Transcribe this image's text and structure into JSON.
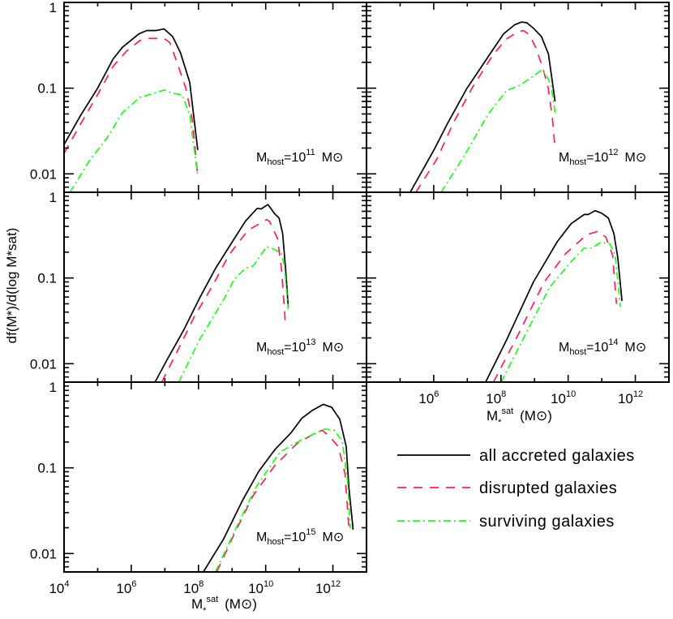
{
  "figure": {
    "xlabel": {
      "symbol": "M",
      "superscript": "sat",
      "subscript": "*",
      "unit": "(M⊙)"
    },
    "ylabel": "df(M*)/d(log M*sat)",
    "x_tick_base": "10",
    "x_tick_exponents": [
      "4",
      "6",
      "8",
      "10",
      "12"
    ],
    "y_tick_labels": [
      "1",
      "0.1",
      "0.01"
    ],
    "legend": [
      {
        "label": "all accreted galaxies",
        "color": "#000000",
        "style": "solid"
      },
      {
        "label": "disrupted galaxies",
        "color": "#ff1f55",
        "style": "dashed"
      },
      {
        "label": "surviving galaxies",
        "color": "#19ff19",
        "style": "dash-dot"
      }
    ]
  },
  "chart_data": [
    {
      "type": "line",
      "xscale": "log",
      "yscale": "log",
      "xlim": [
        10000.0,
        10000000000000.0
      ],
      "ylim": [
        0.0061,
        1.0
      ],
      "annotation": {
        "symbol": "M",
        "subscript": "host",
        "base": "=10",
        "exponent": "11",
        "unit": "M⊙"
      },
      "series": [
        {
          "name": "all accreted galaxies",
          "x": [
            10000.0,
            32000.0,
            100000.0,
            290000.0,
            550000.0,
            1700000.0,
            2900000.0,
            5500000.0,
            9500000.0,
            17000000.0,
            29000000.0,
            55000000.0,
            95000000.0
          ],
          "y": [
            0.022,
            0.049,
            0.1,
            0.22,
            0.3,
            0.43,
            0.47,
            0.47,
            0.49,
            0.4,
            0.26,
            0.117,
            0.019
          ]
        },
        {
          "name": "disrupted galaxies",
          "x": [
            10000.0,
            32000.0,
            100000.0,
            290000.0,
            720000.0,
            1800000.0,
            3200000.0,
            9500000.0,
            14000000.0,
            24000000.0,
            42000000.0,
            66000000.0,
            95000000.0
          ],
          "y": [
            0.0174,
            0.039,
            0.084,
            0.18,
            0.27,
            0.36,
            0.38,
            0.38,
            0.34,
            0.19,
            0.1,
            0.042,
            0.0093
          ]
        },
        {
          "name": "surviving galaxies",
          "x": [
            15000.0,
            55000.0,
            200000.0,
            550000.0,
            1800000.0,
            9500000.0,
            17000000.0,
            32000000.0,
            55000000.0,
            95000000.0
          ],
          "y": [
            0.0061,
            0.014,
            0.027,
            0.052,
            0.078,
            0.095,
            0.087,
            0.084,
            0.049,
            0.0093
          ]
        }
      ]
    },
    {
      "type": "line",
      "xscale": "log",
      "yscale": "log",
      "xlim": [
        10000.0,
        10000000000000.0
      ],
      "ylim": [
        0.0061,
        1.0
      ],
      "annotation": {
        "symbol": "M",
        "subscript": "host",
        "base": "=10",
        "exponent": "12",
        "unit": "M⊙"
      },
      "series": [
        {
          "name": "all accreted galaxies",
          "x": [
            200000.0,
            1050000.0,
            2600000.0,
            9500000.0,
            42000000.0,
            120000000.0,
            260000000.0,
            410000000.0,
            590000000.0,
            930000000.0,
            1600000000.0,
            2600000000.0,
            4100000000.0
          ],
          "y": [
            0.0061,
            0.0195,
            0.039,
            0.098,
            0.234,
            0.43,
            0.55,
            0.59,
            0.58,
            0.5,
            0.4,
            0.25,
            0.07
          ]
        },
        {
          "name": "disrupted galaxies",
          "x": [
            295000.0,
            1260000.0,
            3800000.0,
            13800000.0,
            60000000.0,
            148000000.0,
            310000000.0,
            470000000.0,
            710000000.0,
            1120000000.0,
            1780000000.0,
            2570000000.0,
            3400000000.0,
            4100000000.0
          ],
          "y": [
            0.0061,
            0.015,
            0.039,
            0.1,
            0.25,
            0.375,
            0.45,
            0.47,
            0.42,
            0.29,
            0.17,
            0.1,
            0.045,
            0.0195
          ]
        },
        {
          "name": "surviving galaxies",
          "x": [
            1660000.0,
            7900000.0,
            42000000.0,
            148000000.0,
            370000000.0,
            650000000.0,
            1620000000.0,
            2300000000.0,
            3100000000.0,
            4100000000.0
          ],
          "y": [
            0.0061,
            0.016,
            0.05,
            0.094,
            0.108,
            0.126,
            0.162,
            0.14,
            0.108,
            0.052
          ]
        }
      ]
    },
    {
      "type": "line",
      "xscale": "log",
      "yscale": "log",
      "xlim": [
        10000.0,
        10000000000000.0
      ],
      "ylim": [
        0.0061,
        1.0
      ],
      "annotation": {
        "symbol": "M",
        "subscript": "host",
        "base": "=10",
        "exponent": "13",
        "unit": "M⊙"
      },
      "series": [
        {
          "name": "all accreted galaxies",
          "x": [
            5100000.0,
            11700000.0,
            35000000.0,
            107000000.0,
            320000000.0,
            980000000.0,
            2500000000.0,
            5600000000.0,
            7400000000.0,
            11700000000.0,
            18600000000.0,
            25000000000.0,
            32000000000.0,
            39000000000.0,
            47000000000.0
          ],
          "y": [
            0.0061,
            0.0112,
            0.024,
            0.058,
            0.129,
            0.259,
            0.46,
            0.65,
            0.64,
            0.72,
            0.56,
            0.5,
            0.33,
            0.129,
            0.046
          ]
        },
        {
          "name": "disrupted galaxies",
          "x": [
            8100000.0,
            24500000.0,
            74000000.0,
            270000000.0,
            810000000.0,
            2950000000.0,
            10700000000.0,
            12900000000.0,
            22400000000.0,
            29500000000.0,
            39000000000.0
          ],
          "y": [
            0.0061,
            0.0145,
            0.035,
            0.083,
            0.186,
            0.36,
            0.48,
            0.46,
            0.29,
            0.129,
            0.028
          ]
        },
        {
          "name": "surviving galaxies",
          "x": [
            26000000.0,
            107000000.0,
            560000000.0,
            1170000000.0,
            2450000000.0,
            4300000000.0,
            10700000000.0,
            18600000000.0,
            29500000000.0,
            36000000000.0,
            47000000000.0
          ],
          "y": [
            0.0061,
            0.019,
            0.056,
            0.097,
            0.129,
            0.139,
            0.232,
            0.215,
            0.193,
            0.139,
            0.043
          ]
        }
      ]
    },
    {
      "type": "line",
      "xscale": "log",
      "yscale": "log",
      "xlim": [
        10000.0,
        10000000000000.0
      ],
      "ylim": [
        0.0061,
        1.0
      ],
      "annotation": {
        "symbol": "M",
        "subscript": "host",
        "base": "=10",
        "exponent": "14",
        "unit": "M⊙"
      },
      "series": [
        {
          "name": "all accreted galaxies",
          "x": [
            35000000.0,
            148000000.0,
            930000000.0,
            4900000000.0,
            12300000000.0,
            30000000000.0,
            40000000000.0,
            63000000000.0,
            100000000000.0,
            158000000000.0,
            230000000000.0,
            300000000000.0,
            400000000000.0
          ],
          "y": [
            0.0061,
            0.019,
            0.09,
            0.27,
            0.43,
            0.55,
            0.55,
            0.61,
            0.57,
            0.5,
            0.33,
            0.173,
            0.054
          ]
        },
        {
          "name": "disrupted galaxies",
          "x": [
            60000000.0,
            310000000.0,
            1950000000.0,
            8500000000.0,
            36000000000.0,
            76000000000.0,
            132000000000.0,
            210000000000.0,
            275000000000.0
          ],
          "y": [
            0.0061,
            0.021,
            0.09,
            0.193,
            0.32,
            0.35,
            0.3,
            0.186,
            0.05
          ]
        },
        {
          "name": "surviving galaxies",
          "x": [
            102000000.0,
            540000000.0,
            2800000000.0,
            12300000000.0,
            30000000000.0,
            52000000000.0,
            91000000000.0,
            174000000000.0,
            250000000000.0,
            360000000000.0
          ],
          "y": [
            0.0061,
            0.022,
            0.078,
            0.155,
            0.224,
            0.224,
            0.259,
            0.25,
            0.186,
            0.046
          ]
        }
      ]
    },
    {
      "type": "line",
      "xscale": "log",
      "yscale": "log",
      "xlim": [
        10000.0,
        10000000000000.0
      ],
      "ylim": [
        0.0061,
        1.0
      ],
      "annotation": {
        "symbol": "M",
        "subscript": "host",
        "base": "=10",
        "exponent": "15",
        "unit": "M⊙"
      },
      "series": [
        {
          "name": "all accreted galaxies",
          "x": [
            140000000.0,
            560000000.0,
            2000000000.0,
            6200000000.0,
            19000000000.0,
            56000000000.0,
            120000000000.0,
            250000000000.0,
            520000000000.0,
            910000000000.0,
            1600000000000.0,
            2500000000000.0,
            3000000000000.0,
            4000000000000.0
          ],
          "y": [
            0.0061,
            0.0148,
            0.041,
            0.091,
            0.164,
            0.255,
            0.38,
            0.47,
            0.55,
            0.51,
            0.37,
            0.177,
            0.059,
            0.019
          ]
        },
        {
          "name": "disrupted galaxies",
          "x": [
            350000000.0,
            1170000000.0,
            4300000000.0,
            18600000000.0,
            83000000000.0,
            250000000000.0,
            480000000000.0,
            760000000000.0,
            1450000000000.0,
            2300000000000.0,
            3000000000000.0
          ],
          "y": [
            0.0061,
            0.017,
            0.048,
            0.106,
            0.19,
            0.245,
            0.274,
            0.237,
            0.177,
            0.085,
            0.0197
          ]
        },
        {
          "name": "surviving galaxies",
          "x": [
            320000000.0,
            1170000000.0,
            5100000000.0,
            27000000000.0,
            117000000000.0,
            250000000000.0,
            580000000000.0,
            1100000000000.0,
            1900000000000.0,
            2750000000000.0,
            3300000000000.0
          ],
          "y": [
            0.0061,
            0.018,
            0.059,
            0.153,
            0.212,
            0.245,
            0.284,
            0.274,
            0.205,
            0.068,
            0.0197
          ]
        }
      ]
    }
  ]
}
